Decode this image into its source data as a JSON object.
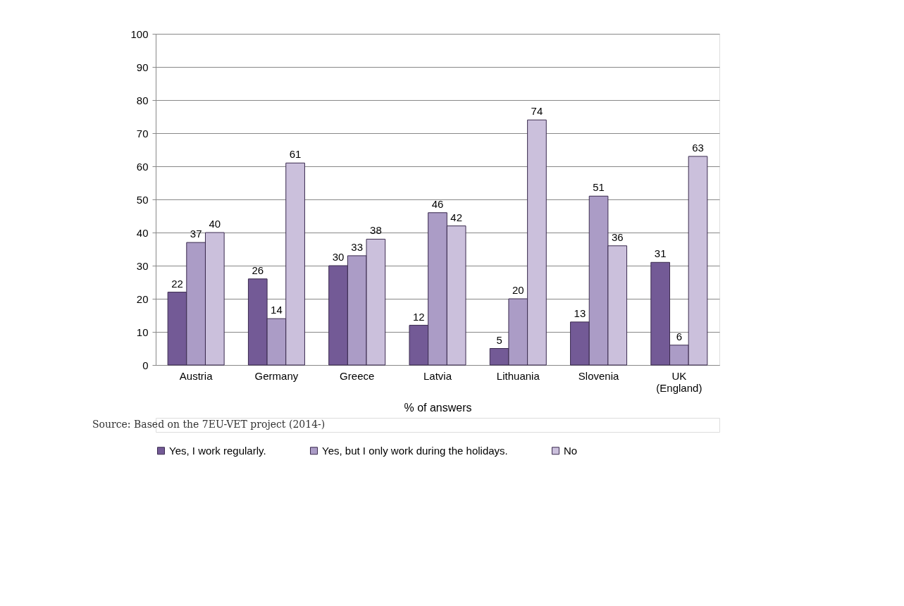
{
  "chart_data": {
    "type": "bar",
    "xlabel": "% of answers",
    "categories": [
      "Austria",
      "Germany",
      "Greece",
      "Latvia",
      "Lithuania",
      "Slovenia",
      "UK (England)"
    ],
    "series": [
      {
        "name": "Yes, I work regularly.",
        "color": "#735a96",
        "values": [
          22,
          26,
          30,
          12,
          5,
          13,
          31
        ]
      },
      {
        "name": "Yes, but I only work during the holidays.",
        "color": "#ab9cc6",
        "values": [
          37,
          14,
          33,
          46,
          20,
          51,
          6
        ]
      },
      {
        "name": "No",
        "color": "#cbc0dc",
        "values": [
          40,
          61,
          38,
          42,
          74,
          36,
          63
        ]
      }
    ],
    "ylim": [
      0,
      100
    ],
    "yticks": [
      0,
      10,
      20,
      30,
      40,
      50,
      60,
      70,
      80,
      90,
      100
    ],
    "grid": "y",
    "legend": "bottom",
    "data_labels": true,
    "annotations": [
      "Source: Based on the 7EU-VET project (2014-)"
    ]
  }
}
